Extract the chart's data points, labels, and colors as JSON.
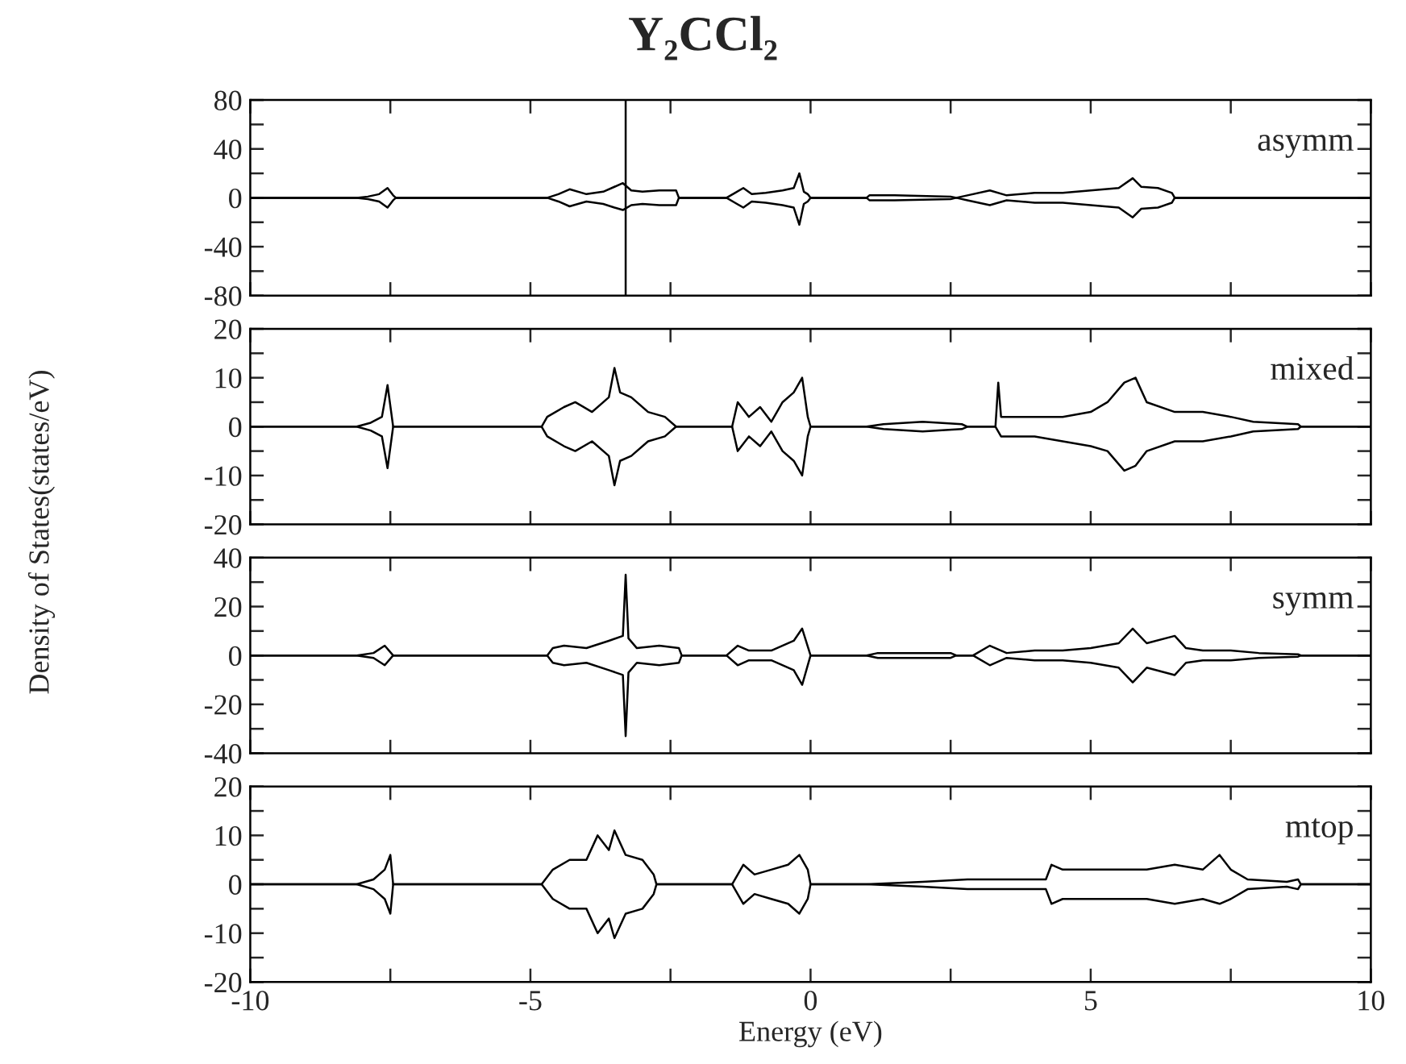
{
  "chart_data": [
    {
      "type": "line",
      "title": "Y₂CCl₂",
      "ylabel": "Density of States(states/eV)",
      "annotations": [
        "asymm"
      ],
      "x": [
        -10,
        -8.1,
        -7.9,
        -7.7,
        -7.55,
        -7.45,
        -7.4,
        -4.7,
        -4.5,
        -4.3,
        -4.0,
        -3.7,
        -3.5,
        -3.35,
        -3.2,
        -3.0,
        -2.7,
        -2.4,
        -2.35,
        -1.5,
        -1.35,
        -1.2,
        -1.05,
        -0.8,
        -0.5,
        -0.3,
        -0.2,
        -0.12,
        -0.05,
        0,
        1.0,
        1.05,
        1.5,
        2.5,
        2.6,
        2.8,
        3.2,
        3.5,
        4.0,
        4.5,
        5.0,
        5.5,
        5.75,
        5.9,
        6.2,
        6.45,
        6.5,
        10
      ],
      "series": [
        {
          "color": "#000000",
          "values": [
            0,
            0,
            1,
            3,
            8,
            2,
            0,
            0,
            3,
            7,
            3,
            5,
            9,
            12,
            6,
            5,
            6,
            6,
            0,
            0,
            4,
            8,
            3,
            4,
            6,
            8,
            20,
            5,
            3,
            0,
            0,
            2,
            2,
            1,
            0,
            2,
            6,
            2,
            4,
            4,
            6,
            8,
            16,
            9,
            8,
            4,
            0,
            0
          ]
        },
        {
          "color": "#000000",
          "values": [
            0,
            0,
            -1,
            -3,
            -8,
            -2,
            0,
            0,
            -3,
            -7,
            -3,
            -5,
            -8,
            -10,
            -6,
            -5,
            -6,
            -6,
            0,
            0,
            -4,
            -8,
            -3,
            -4,
            -6,
            -8,
            -22,
            -5,
            -3,
            0,
            0,
            -2,
            -2,
            -1,
            0,
            -2,
            -6,
            -2,
            -4,
            -4,
            -6,
            -8,
            -16,
            -9,
            -8,
            -4,
            0,
            0
          ]
        }
      ],
      "ref_lines": [
        {
          "axis": "x",
          "value": -3.3,
          "label": null,
          "color": "#000000"
        }
      ],
      "xlim": [
        -10,
        10
      ],
      "xticks": [
        -10,
        {
          "value": -7.5,
          "label": null
        },
        -5,
        {
          "value": -2.5,
          "label": null
        },
        0,
        {
          "value": 2.5,
          "label": null
        },
        5,
        {
          "value": 7.5,
          "label": null
        },
        10
      ],
      "ylim": [
        -80,
        80
      ],
      "yticks": [
        -80,
        {
          "value": -60,
          "label": null
        },
        -40,
        {
          "value": -20,
          "label": null
        },
        0,
        {
          "value": 20,
          "label": null
        },
        40,
        {
          "value": 60,
          "label": null
        },
        80
      ],
      "tick_labels": "y"
    },
    {
      "type": "line",
      "annotations": [
        "mixed"
      ],
      "x": [
        -10,
        -8.1,
        -7.85,
        -7.65,
        -7.55,
        -7.45,
        -4.8,
        -4.7,
        -4.4,
        -4.2,
        -3.9,
        -3.6,
        -3.5,
        -3.4,
        -3.2,
        -2.9,
        -2.6,
        -2.4,
        -1.4,
        -1.3,
        -1.1,
        -0.9,
        -0.7,
        -0.5,
        -0.3,
        -0.15,
        -0.05,
        0,
        1.0,
        1.3,
        2.0,
        2.7,
        2.8,
        3.3,
        3.35,
        3.4,
        4.0,
        4.5,
        5.0,
        5.3,
        5.6,
        5.8,
        6.0,
        6.5,
        7.0,
        7.5,
        7.9,
        8.7,
        8.75,
        10
      ],
      "series": [
        {
          "color": "#000000",
          "values": [
            0,
            0,
            0.8,
            2,
            8.5,
            0,
            0,
            2,
            4,
            5,
            3,
            6,
            12,
            7,
            6,
            3,
            2,
            0,
            0,
            5,
            2,
            4,
            1,
            5,
            7,
            10,
            2,
            0,
            0,
            0.5,
            1,
            0.5,
            0,
            0,
            9,
            2,
            2,
            2,
            3,
            5,
            9,
            10,
            5,
            3,
            3,
            2,
            1,
            0.5,
            0,
            0
          ]
        },
        {
          "color": "#000000",
          "values": [
            0,
            0,
            -0.8,
            -2,
            -8.5,
            0,
            0,
            -2,
            -4,
            -5,
            -3,
            -6,
            -12,
            -7,
            -6,
            -3,
            -2,
            0,
            0,
            -5,
            -2,
            -4,
            -1,
            -5,
            -7,
            -10,
            -2,
            0,
            0,
            -0.5,
            -1,
            -0.5,
            0,
            0,
            -1,
            -2,
            -2,
            -3,
            -4,
            -5,
            -9,
            -8,
            -5,
            -3,
            -3,
            -2,
            -1,
            -0.5,
            0,
            0
          ]
        }
      ],
      "xlim": [
        -10,
        10
      ],
      "xticks": [
        -10,
        {
          "value": -7.5,
          "label": null
        },
        -5,
        {
          "value": -2.5,
          "label": null
        },
        0,
        {
          "value": 2.5,
          "label": null
        },
        5,
        {
          "value": 7.5,
          "label": null
        },
        10
      ],
      "ylim": [
        -20,
        20
      ],
      "yticks": [
        -20,
        {
          "value": -15,
          "label": null
        },
        -10,
        {
          "value": -5,
          "label": null
        },
        0,
        {
          "value": 5,
          "label": null
        },
        10,
        {
          "value": 15,
          "label": null
        },
        20
      ],
      "tick_labels": "y"
    },
    {
      "type": "line",
      "annotations": [
        "symm"
      ],
      "x": [
        -10,
        -8.1,
        -7.8,
        -7.6,
        -7.45,
        -4.7,
        -4.6,
        -4.4,
        -4.0,
        -3.6,
        -3.35,
        -3.3,
        -3.25,
        -3.1,
        -2.7,
        -2.35,
        -2.3,
        -1.5,
        -1.3,
        -1.1,
        -0.7,
        -0.3,
        -0.15,
        0,
        1.0,
        1.2,
        2.5,
        2.6,
        2.9,
        3.2,
        3.5,
        4.0,
        4.5,
        5.0,
        5.5,
        5.75,
        6.0,
        6.5,
        6.7,
        7.0,
        7.5,
        8.0,
        8.7,
        8.75,
        10
      ],
      "series": [
        {
          "color": "#000000",
          "values": [
            0,
            0,
            1,
            4,
            0,
            0,
            3,
            4,
            3,
            6,
            8,
            33,
            7,
            3,
            4,
            3,
            0,
            0,
            4,
            2,
            2,
            6,
            11,
            0,
            0,
            1,
            1,
            0,
            0,
            4,
            1,
            2,
            2,
            3,
            5,
            11,
            5,
            8,
            3,
            2,
            2,
            1,
            0.5,
            0,
            0
          ]
        },
        {
          "color": "#000000",
          "values": [
            0,
            0,
            -1,
            -4,
            0,
            0,
            -3,
            -4,
            -3,
            -6,
            -8,
            -33,
            -7,
            -3,
            -4,
            -3,
            0,
            0,
            -4,
            -2,
            -2,
            -6,
            -12,
            0,
            0,
            -1,
            -1,
            0,
            0,
            -4,
            -1,
            -2,
            -2,
            -3,
            -5,
            -11,
            -5,
            -8,
            -3,
            -2,
            -2,
            -1,
            -0.5,
            0,
            0
          ]
        }
      ],
      "xlim": [
        -10,
        10
      ],
      "xticks": [
        -10,
        {
          "value": -7.5,
          "label": null
        },
        -5,
        {
          "value": -2.5,
          "label": null
        },
        0,
        {
          "value": 2.5,
          "label": null
        },
        5,
        {
          "value": 7.5,
          "label": null
        },
        10
      ],
      "ylim": [
        -40,
        40
      ],
      "yticks": [
        -40,
        {
          "value": -30,
          "label": null
        },
        -20,
        {
          "value": -10,
          "label": null
        },
        0,
        {
          "value": 10,
          "label": null
        },
        20,
        {
          "value": 30,
          "label": null
        },
        40
      ],
      "tick_labels": "y"
    },
    {
      "type": "line",
      "xlabel": "Energy (eV)",
      "annotations": [
        "mtop"
      ],
      "x": [
        -10,
        -8.1,
        -7.8,
        -7.6,
        -7.5,
        -7.45,
        -4.8,
        -4.6,
        -4.3,
        -4.0,
        -3.8,
        -3.6,
        -3.5,
        -3.3,
        -3.0,
        -2.8,
        -2.75,
        -1.4,
        -1.2,
        -1.0,
        -0.7,
        -0.4,
        -0.2,
        -0.05,
        0,
        1.0,
        2.0,
        2.8,
        3.5,
        4.2,
        4.3,
        4.5,
        5.0,
        5.5,
        6.0,
        6.5,
        7.0,
        7.3,
        7.5,
        7.8,
        8.5,
        8.7,
        8.75,
        10
      ],
      "series": [
        {
          "color": "#000000",
          "values": [
            0,
            0,
            1,
            3,
            6,
            0,
            0,
            3,
            5,
            5,
            10,
            7,
            11,
            6,
            5,
            2,
            0,
            0,
            4,
            2,
            3,
            4,
            6,
            3,
            0,
            0,
            0.5,
            1,
            1,
            1,
            4,
            3,
            3,
            3,
            3,
            4,
            3,
            6,
            3,
            1,
            0.5,
            1,
            0,
            0
          ]
        },
        {
          "color": "#000000",
          "values": [
            0,
            0,
            -1,
            -3,
            -6,
            0,
            0,
            -3,
            -5,
            -5,
            -10,
            -7,
            -11,
            -6,
            -5,
            -2,
            0,
            0,
            -4,
            -2,
            -3,
            -4,
            -6,
            -3,
            0,
            0,
            -0.5,
            -1,
            -1,
            -1,
            -4,
            -3,
            -3,
            -3,
            -3,
            -4,
            -3,
            -4,
            -3,
            -1,
            -0.5,
            -1,
            0,
            0
          ]
        }
      ],
      "xlim": [
        -10,
        10
      ],
      "xticks": [
        -10,
        {
          "value": -7.5,
          "label": null
        },
        -5,
        {
          "value": -2.5,
          "label": null
        },
        0,
        {
          "value": 2.5,
          "label": null
        },
        5,
        {
          "value": 7.5,
          "label": null
        },
        10
      ],
      "ylim": [
        -20,
        20
      ],
      "yticks": [
        -20,
        {
          "value": -15,
          "label": null
        },
        -10,
        {
          "value": -5,
          "label": null
        },
        0,
        {
          "value": 5,
          "label": null
        },
        10,
        {
          "value": 15,
          "label": null
        },
        20
      ]
    }
  ]
}
